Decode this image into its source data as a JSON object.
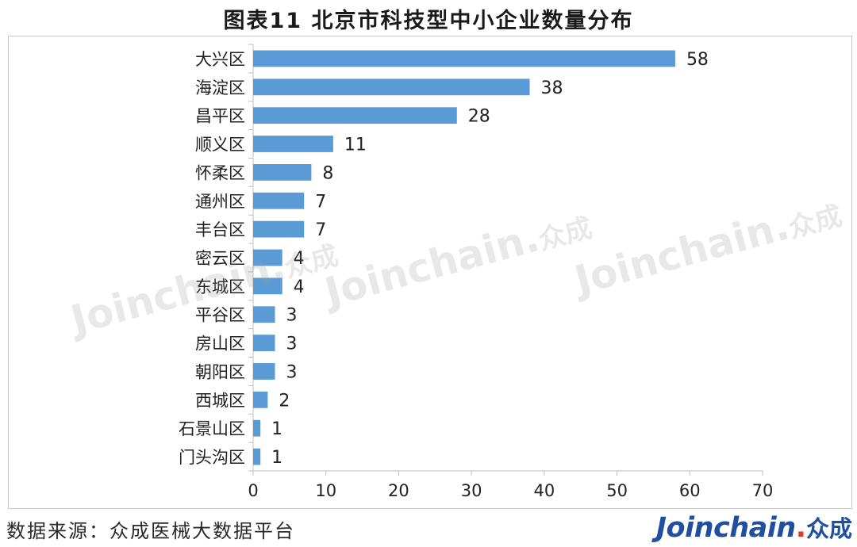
{
  "title": "图表11   北京市科技型中小企业数量分布",
  "source": "数据来源：众成医械大数据平台",
  "logo": {
    "latin": "Joinchain",
    "dot": ".",
    "cn": "众成"
  },
  "watermark": {
    "latin": "Joinchain.",
    "cn": "众成"
  },
  "colors": {
    "bar": "#5b9bd5",
    "axis": "#bfbfbf",
    "text": "#222222",
    "logo": "#1f4f9e",
    "logo_dot": "#e03b2f"
  },
  "chart_data": {
    "type": "bar",
    "orientation": "horizontal",
    "categories": [
      "大兴区",
      "海淀区",
      "昌平区",
      "顺义区",
      "怀柔区",
      "通州区",
      "丰台区",
      "密云区",
      "东城区",
      "平谷区",
      "房山区",
      "朝阳区",
      "西城区",
      "石景山区",
      "门头沟区"
    ],
    "values": [
      58,
      38,
      28,
      11,
      8,
      7,
      7,
      4,
      4,
      3,
      3,
      3,
      2,
      1,
      1
    ],
    "xlim": [
      0,
      70
    ],
    "xticks": [
      "0",
      "10",
      "20",
      "30",
      "40",
      "50",
      "60",
      "70"
    ],
    "grid": false,
    "data_labels": true
  }
}
